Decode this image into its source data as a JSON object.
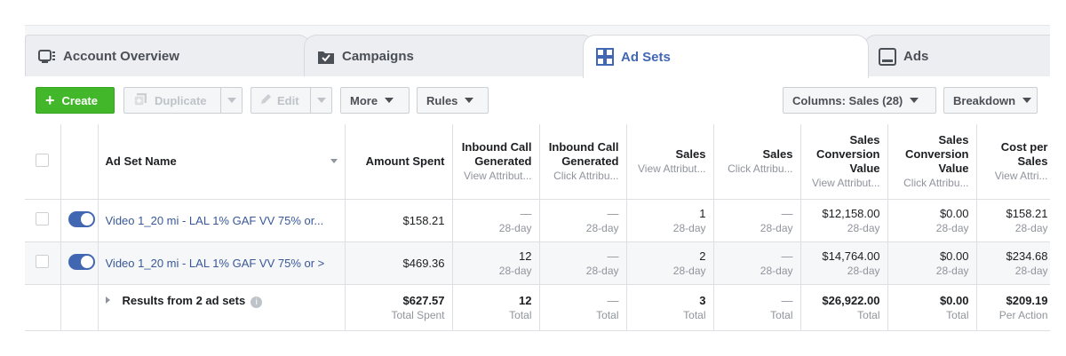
{
  "tabs": [
    {
      "label": "Account Overview",
      "icon": "account-overview-icon"
    },
    {
      "label": "Campaigns",
      "icon": "campaigns-folder-icon"
    },
    {
      "label": "Ad Sets",
      "icon": "ad-sets-grid-icon",
      "active": true
    },
    {
      "label": "Ads",
      "icon": "ads-icon"
    }
  ],
  "toolbar": {
    "create_label": "Create",
    "duplicate_label": "Duplicate",
    "edit_label": "Edit",
    "more_label": "More",
    "rules_label": "Rules",
    "columns_label": "Columns: Sales (28)",
    "breakdown_label": "Breakdown"
  },
  "columns": {
    "name": "Ad Set Name",
    "amount_spent": "Amount Spent",
    "inbound_view": {
      "title": "Inbound Call Generated",
      "sub": "View Attribut..."
    },
    "inbound_click": {
      "title": "Inbound Call Generated",
      "sub": "Click Attribu..."
    },
    "sales_view": {
      "title": "Sales",
      "sub": "View Attribut..."
    },
    "sales_click": {
      "title": "Sales",
      "sub": "Click Attribu..."
    },
    "scv_view": {
      "title": "Sales Conversion Value",
      "sub": "View Attribut..."
    },
    "scv_click": {
      "title": "Sales Conversion Value",
      "sub": "Click Attribu..."
    },
    "cost_per_sales": {
      "title": "Cost per Sales",
      "sub": "View Attri..."
    }
  },
  "rows": [
    {
      "name": "Video 1_20 mi - LAL 1% GAF VV 75% or...",
      "amount_spent": "$158.21",
      "inbound_view": "—",
      "inbound_view_sub": "28-day",
      "inbound_click": "—",
      "inbound_click_sub": "28-day",
      "sales_view": "1",
      "sales_view_sub": "28-day",
      "sales_click": "—",
      "sales_click_sub": "28-day",
      "scv_view": "$12,158.00",
      "scv_view_sub": "28-day",
      "scv_click": "$0.00",
      "scv_click_sub": "28-day",
      "cost_per_sales": "$158.21",
      "cost_per_sales_sub": "28-day"
    },
    {
      "name": "Video 1_20 mi - LAL 1% GAF VV 75% or >",
      "amount_spent": "$469.36",
      "inbound_view": "12",
      "inbound_view_sub": "28-day",
      "inbound_click": "—",
      "inbound_click_sub": "28-day",
      "sales_view": "2",
      "sales_view_sub": "28-day",
      "sales_click": "—",
      "sales_click_sub": "28-day",
      "scv_view": "$14,764.00",
      "scv_view_sub": "28-day",
      "scv_click": "$0.00",
      "scv_click_sub": "28-day",
      "cost_per_sales": "$234.68",
      "cost_per_sales_sub": "28-day"
    }
  ],
  "totals": {
    "label": "Results from 2 ad sets",
    "amount_spent": "$627.57",
    "amount_spent_sub": "Total Spent",
    "inbound_view": "12",
    "inbound_view_sub": "Total",
    "inbound_click": "—",
    "inbound_click_sub": "Total",
    "sales_view": "3",
    "sales_view_sub": "Total",
    "sales_click": "—",
    "sales_click_sub": "Total",
    "scv_view": "$26,922.00",
    "scv_view_sub": "Total",
    "scv_click": "$0.00",
    "scv_click_sub": "Total",
    "cost_per_sales": "$209.19",
    "cost_per_sales_sub": "Per Action"
  },
  "colors": {
    "accent": "#4267b2",
    "create_green": "#42b72a",
    "link": "#385898"
  }
}
